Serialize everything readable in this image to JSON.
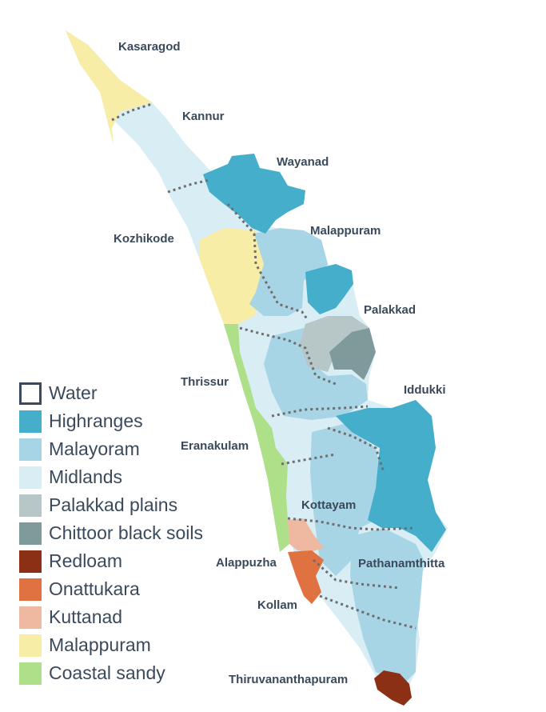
{
  "districts": [
    "Kasaragod",
    "Kannur",
    "Wayanad",
    "Kozhikode",
    "Malappuram",
    "Palakkad",
    "Thrissur",
    "Iddukki",
    "Eranakulam",
    "Kottayam",
    "Alappuzha",
    "Pathanamthitta",
    "Kollam",
    "Thiruvananthapuram"
  ],
  "legend": [
    {
      "label": "Water",
      "color": "#ffffff",
      "border": "#3a4a5c"
    },
    {
      "label": "Highranges",
      "color": "#44aecb"
    },
    {
      "label": "Malayoram",
      "color": "#a8d5e5"
    },
    {
      "label": "Midlands",
      "color": "#d9edf4"
    },
    {
      "label": "Palakkad plains",
      "color": "#b7c6c7"
    },
    {
      "label": "Chittoor black soils",
      "color": "#7e9a9a"
    },
    {
      "label": "Redloam",
      "color": "#8b3014"
    },
    {
      "label": "Onattukara",
      "color": "#e07242"
    },
    {
      "label": "Kuttanad",
      "color": "#efb8a0"
    },
    {
      "label": "Malappuram",
      "color": "#f7eda6"
    },
    {
      "label": "Coastal sandy",
      "color": "#aee089"
    }
  ]
}
